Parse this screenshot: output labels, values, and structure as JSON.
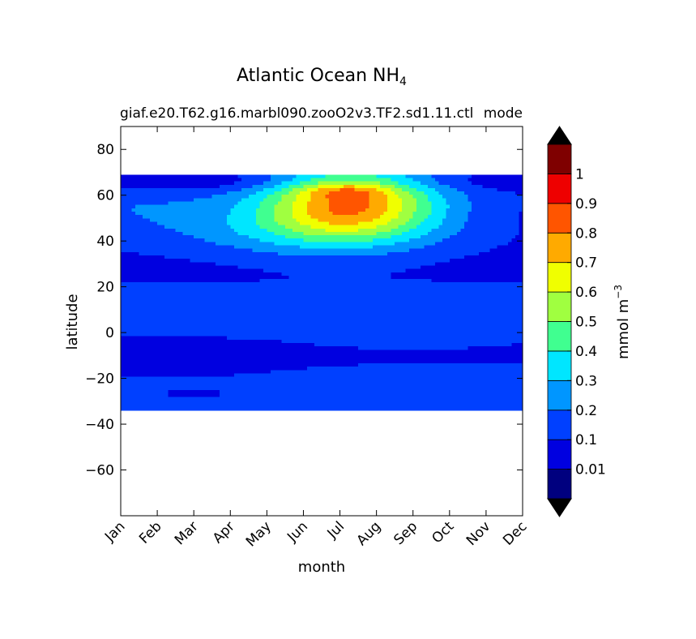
{
  "chart_data": {
    "type": "heatmap",
    "title": "Atlantic Ocean NH",
    "title_subscript": "4",
    "subtitle_left": "giaf.e20.T62.g16.marbl090.zooO2v3.TF2.sd1.11.ctl",
    "subtitle_right": "mode",
    "xlabel": "month",
    "ylabel": "latitude",
    "x_categories": [
      "Jan",
      "Feb",
      "Mar",
      "Apr",
      "May",
      "Jun",
      "Jul",
      "Aug",
      "Sep",
      "Oct",
      "Nov",
      "Dec"
    ],
    "ylim": [
      -80,
      90
    ],
    "y_ticks": [
      -60,
      -40,
      -20,
      0,
      20,
      40,
      60,
      80
    ],
    "data_lat_range": [
      -34,
      69
    ],
    "colorbar": {
      "label": "mmol m",
      "label_superscript": "−3",
      "levels": [
        0,
        0.01,
        0.1,
        0.2,
        0.3,
        0.4,
        0.5,
        0.6,
        0.7,
        0.8,
        0.9,
        1,
        1.1
      ],
      "tick_labels": [
        "0.01",
        "0.1",
        "0.2",
        "0.3",
        "0.4",
        "0.5",
        "0.6",
        "0.7",
        "0.8",
        "0.9",
        "1"
      ],
      "colors": [
        "#00007f",
        "#0000e0",
        "#0040ff",
        "#0096ff",
        "#00e6ff",
        "#40ff90",
        "#a0ff40",
        "#f0ff00",
        "#ffaa00",
        "#ff5500",
        "#ee0000",
        "#7f0000"
      ],
      "extend_colors": {
        "low": "#000000",
        "high": "#000000"
      }
    }
  }
}
